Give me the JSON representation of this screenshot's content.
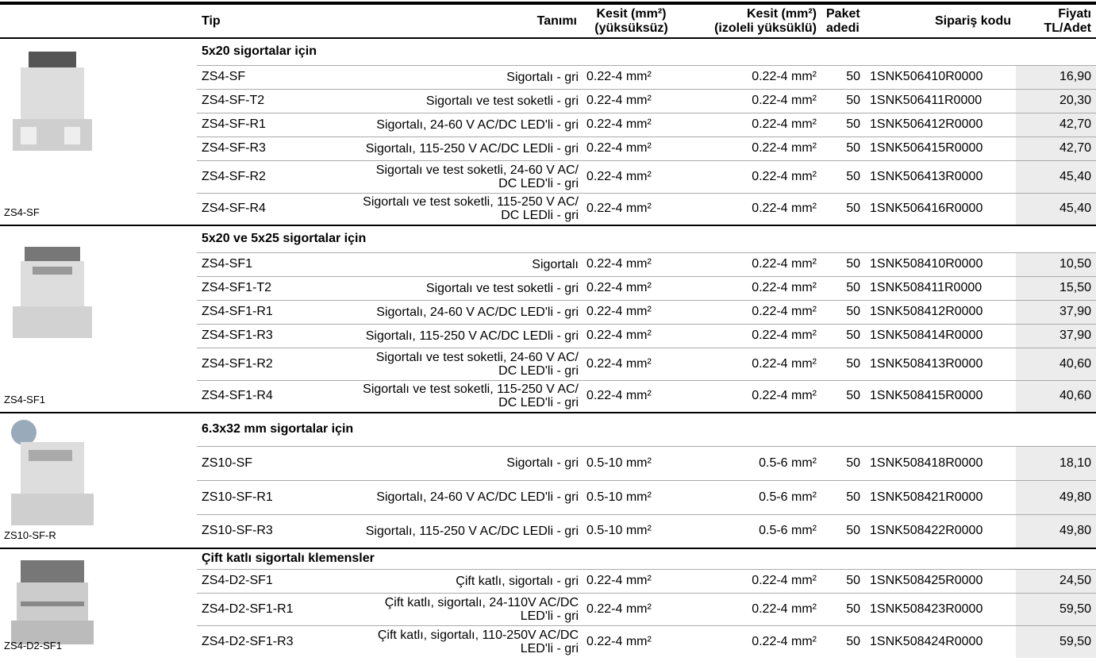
{
  "header": {
    "columns": [
      "Tip",
      "Tanımı",
      "Kesit (mm²)\n(yüksüksüz)",
      "Kesit (mm²)\n(izoleli yüksüklü)",
      "Paket\nadedi",
      "Sipariş kodu",
      "Fiyatı\nTL/Adet"
    ]
  },
  "groups": [
    {
      "title": "5x20 sigortalar için",
      "image_label": "ZS4-SF",
      "rows": [
        [
          "ZS4-SF",
          "Sigortalı - gri",
          "0.22-4 mm²",
          "0.22-4 mm²",
          50,
          "1SNK506410R0000",
          "16,90"
        ],
        [
          "ZS4-SF-T2",
          "Sigortalı ve test soketli - gri",
          "0.22-4 mm²",
          "0.22-4 mm²",
          50,
          "1SNK506411R0000",
          "20,30"
        ],
        [
          "ZS4-SF-R1",
          "Sigortalı, 24-60 V AC/DC LED'li - gri",
          "0.22-4 mm²",
          "0.22-4 mm²",
          50,
          "1SNK506412R0000",
          "42,70"
        ],
        [
          "ZS4-SF-R3",
          "Sigortalı, 115-250 V AC/DC LEDli - gri",
          "0.22-4 mm²",
          "0.22-4 mm²",
          50,
          "1SNK506415R0000",
          "42,70"
        ],
        [
          "ZS4-SF-R2",
          "Sigortalı ve test soketli, 24-60 V AC/\nDC LED'li - gri",
          "0.22-4 mm²",
          "0.22-4 mm²",
          50,
          "1SNK506413R0000",
          "45,40"
        ],
        [
          "ZS4-SF-R4",
          "Sigortalı ve test soketli, 115-250 V AC/\nDC LEDli - gri",
          "0.22-4 mm²",
          "0.22-4 mm²",
          50,
          "1SNK506416R0000",
          "45,40"
        ]
      ]
    },
    {
      "title": "5x20 ve 5x25 sigortalar için",
      "image_label": "ZS4-SF1",
      "rows": [
        [
          "ZS4-SF1",
          "Sigortalı",
          "0.22-4 mm²",
          "0.22-4 mm²",
          50,
          "1SNK508410R0000",
          "10,50"
        ],
        [
          "ZS4-SF1-T2",
          "Sigortalı ve test soketli - gri",
          "0.22-4 mm²",
          "0.22-4 mm²",
          50,
          "1SNK508411R0000",
          "15,50"
        ],
        [
          "ZS4-SF1-R1",
          "Sigortalı, 24-60 V AC/DC LED'li - gri",
          "0.22-4 mm²",
          "0.22-4 mm²",
          50,
          "1SNK508412R0000",
          "37,90"
        ],
        [
          "ZS4-SF1-R3",
          "Sigortalı, 115-250 V AC/DC LEDli - gri",
          "0.22-4 mm²",
          "0.22-4 mm²",
          50,
          "1SNK508414R0000",
          "37,90"
        ],
        [
          "ZS4-SF1-R2",
          "Sigortalı ve test soketli, 24-60 V AC/\nDC LED'li - gri",
          "0.22-4 mm²",
          "0.22-4 mm²",
          50,
          "1SNK508413R0000",
          "40,60"
        ],
        [
          "ZS4-SF1-R4",
          "Sigortalı ve test soketli, 115-250 V AC/\nDC LED'li - gri",
          "0.22-4 mm²",
          "0.22-4 mm²",
          50,
          "1SNK508415R0000",
          "40,60"
        ]
      ]
    },
    {
      "title": "6.3x32 mm sigortalar için",
      "image_label": "ZS10-SF-R",
      "rows": [
        [
          "ZS10-SF",
          "Sigortalı - gri",
          "0.5-10 mm²",
          "0.5-6 mm²",
          50,
          "1SNK508418R0000",
          "18,10"
        ],
        [
          "ZS10-SF-R1",
          "Sigortalı, 24-60 V AC/DC LED'li - gri",
          "0.5-10 mm²",
          "0.5-6 mm²",
          50,
          "1SNK508421R0000",
          "49,80"
        ],
        [
          "ZS10-SF-R3",
          "Sigortalı, 115-250 V AC/DC LEDli - gri",
          "0.5-10 mm²",
          "0.5-6 mm²",
          50,
          "1SNK508422R0000",
          "49,80"
        ]
      ]
    },
    {
      "title": "Çift katlı sigortalı klemensler",
      "image_label": "ZS4-D2-SF1",
      "rows": [
        [
          "ZS4-D2-SF1",
          "Çift katlı, sigortalı - gri",
          "0.22-4 mm²",
          "0.22-4 mm²",
          50,
          "1SNK508425R0000",
          "24,50"
        ],
        [
          "ZS4-D2-SF1-R1",
          "Çift katlı, sigortalı, 24-110V AC/DC\nLED'li - gri",
          "0.22-4 mm²",
          "0.22-4 mm²",
          50,
          "1SNK508423R0000",
          "59,50"
        ],
        [
          "ZS4-D2-SF1-R3",
          "Çift katlı, sigortalı, 110-250V AC/DC\nLED'li - gri",
          "0.22-4 mm²",
          "0.22-4 mm²",
          50,
          "1SNK508424R0000",
          "59,50"
        ]
      ]
    }
  ]
}
